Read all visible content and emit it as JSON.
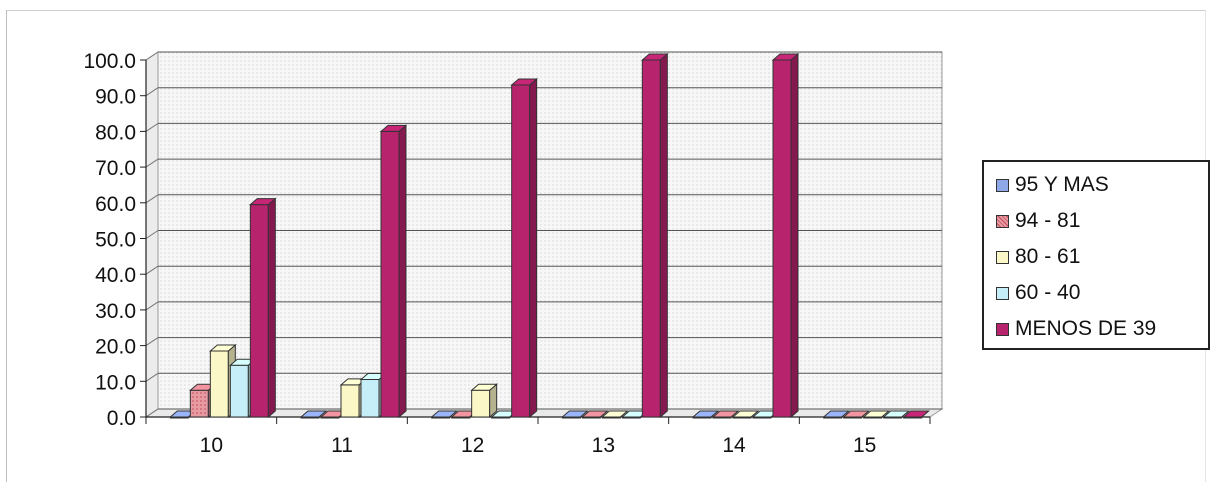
{
  "chart_data": {
    "type": "bar",
    "categories": [
      "10",
      "11",
      "12",
      "13",
      "14",
      "15"
    ],
    "series": [
      {
        "name": "95 Y MAS",
        "color": "#8fa8e8",
        "values": [
          0,
          0,
          0,
          0,
          0,
          0
        ]
      },
      {
        "name": "94 - 81",
        "color": "#e08a94",
        "values": [
          7.5,
          0,
          0,
          0,
          0,
          0
        ]
      },
      {
        "name": "80 - 61",
        "color": "#fbf7c6",
        "values": [
          18.5,
          9,
          7.5,
          0,
          0,
          0
        ]
      },
      {
        "name": "60 - 40",
        "color": "#c6eef8",
        "values": [
          14.5,
          10.5,
          0,
          0,
          0,
          0
        ]
      },
      {
        "name": "MENOS DE 39",
        "color": "#b8236e",
        "values": [
          59.5,
          80,
          93,
          100,
          100,
          0
        ]
      }
    ],
    "y_ticks": [
      "0.0",
      "10.0",
      "20.0",
      "30.0",
      "40.0",
      "50.0",
      "60.0",
      "70.0",
      "80.0",
      "90.0",
      "100.0"
    ],
    "ylim": [
      0,
      100
    ],
    "title": "",
    "xlabel": "",
    "ylabel": "",
    "grid": true,
    "legend": "right",
    "style": "3d-column"
  }
}
